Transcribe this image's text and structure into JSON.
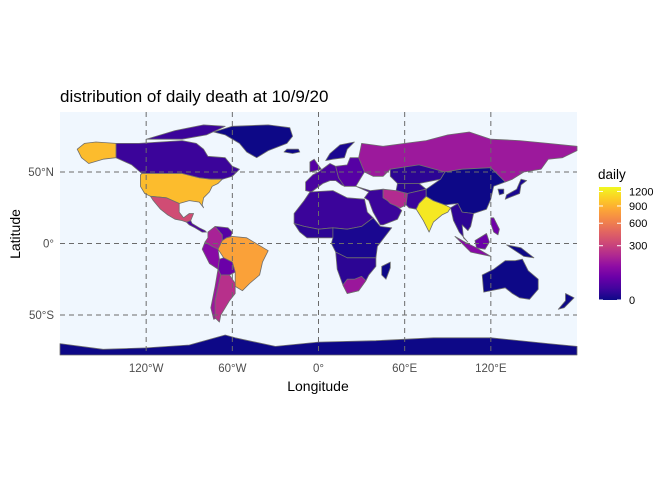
{
  "chart_data": {
    "type": "choropleth-map",
    "title": "distribution of daily death at 10/9/20",
    "xlabel": "Longitude",
    "ylabel": "Latitude",
    "x_ticks": [
      {
        "value": -120,
        "label": "120°W"
      },
      {
        "value": -60,
        "label": "60°W"
      },
      {
        "value": 0,
        "label": "0°"
      },
      {
        "value": 60,
        "label": "60°E"
      },
      {
        "value": 120,
        "label": "120°E"
      }
    ],
    "y_ticks": [
      {
        "value": 50,
        "label": "50°N"
      },
      {
        "value": 0,
        "label": "0°"
      },
      {
        "value": -50,
        "label": "50°S"
      }
    ],
    "xlim": [
      -180,
      180
    ],
    "ylim": [
      -78,
      92
    ],
    "grid": "dashed",
    "ocean_color": "#f0f7fe",
    "legend": {
      "title": "daily",
      "position": "right",
      "scale": "sqrt",
      "range": [
        0,
        1300
      ],
      "ticks": [
        {
          "value": 0,
          "label": "0"
        },
        {
          "value": 300,
          "label": "300"
        },
        {
          "value": 600,
          "label": "600"
        },
        {
          "value": 900,
          "label": "900"
        },
        {
          "value": 1200,
          "label": "1200"
        }
      ],
      "colors": [
        "#0d0887",
        "#41049d",
        "#6a00a8",
        "#8f0da4",
        "#b12a90",
        "#cc4778",
        "#e16462",
        "#f2844b",
        "#fca636",
        "#fcce25",
        "#f0f921"
      ]
    },
    "regions": [
      {
        "name": "India",
        "value": 1200
      },
      {
        "name": "Brazil",
        "value": 800
      },
      {
        "name": "United States",
        "value": 950
      },
      {
        "name": "Mexico",
        "value": 350
      },
      {
        "name": "Argentina",
        "value": 230
      },
      {
        "name": "Colombia",
        "value": 180
      },
      {
        "name": "Peru",
        "value": 100
      },
      {
        "name": "Russia",
        "value": 150
      },
      {
        "name": "Iran",
        "value": 210
      },
      {
        "name": "Indonesia",
        "value": 100
      },
      {
        "name": "Philippines",
        "value": 60
      },
      {
        "name": "Canada",
        "value": 10
      },
      {
        "name": "Alaska",
        "value": 950
      },
      {
        "name": "Greenland",
        "value": 0
      },
      {
        "name": "Australia",
        "value": 0
      },
      {
        "name": "China",
        "value": 0
      },
      {
        "name": "Antarctica",
        "value": 0
      }
    ]
  }
}
